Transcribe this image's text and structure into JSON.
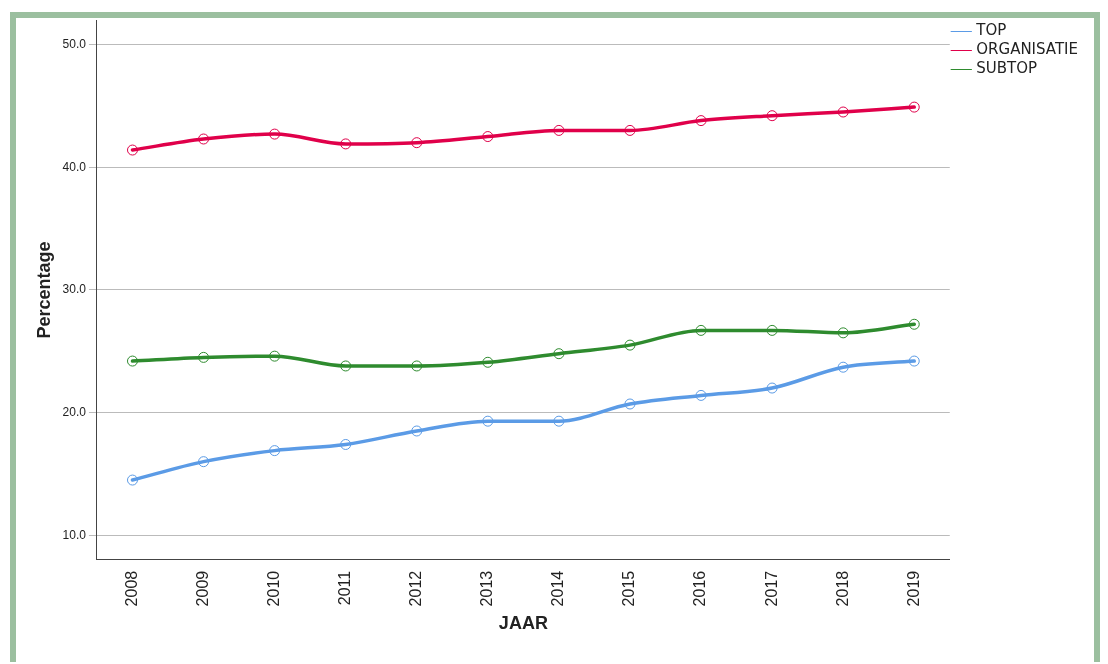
{
  "chart_data": {
    "type": "line",
    "xlabel": "JAAR",
    "ylabel": "Percentage",
    "categories": [
      "2008",
      "2009",
      "2010",
      "2011",
      "2012",
      "2013",
      "2014",
      "2015",
      "2016",
      "2017",
      "2018",
      "2019"
    ],
    "series": [
      {
        "name": "TOP",
        "color": "#5b9be6",
        "values": [
          14.5,
          16.0,
          16.9,
          17.4,
          18.5,
          19.3,
          19.3,
          20.7,
          21.4,
          22.0,
          23.7,
          24.2
        ]
      },
      {
        "name": "ORGANISATIE",
        "color": "#e0004a",
        "values": [
          41.4,
          42.3,
          42.7,
          41.9,
          42.0,
          42.5,
          43.0,
          43.0,
          43.8,
          44.2,
          44.5,
          44.9
        ]
      },
      {
        "name": "SUBTOP",
        "color": "#2e8b2e",
        "values": [
          24.2,
          24.5,
          24.6,
          23.8,
          23.8,
          24.1,
          24.8,
          25.5,
          26.7,
          26.7,
          26.5,
          27.2
        ]
      }
    ],
    "ylim": [
      8,
      52
    ],
    "yticks": [
      {
        "value": 10,
        "label": "10.0"
      },
      {
        "value": 20,
        "label": "20.0"
      },
      {
        "value": 30,
        "label": "30.0"
      },
      {
        "value": 40,
        "label": "40.0"
      },
      {
        "value": 50,
        "label": "50.0"
      }
    ],
    "grid": "y",
    "legend": "top right",
    "marker": "circle",
    "line_style": "solid"
  }
}
